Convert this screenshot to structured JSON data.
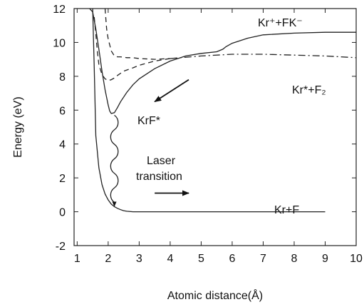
{
  "chart_data": {
    "type": "line",
    "title": "",
    "xlabel": "Atomic distance(Å)",
    "ylabel": "Energy (eV)",
    "xlim": [
      0.9,
      10
    ],
    "ylim": [
      -2,
      12
    ],
    "x_ticks": [
      1,
      2,
      3,
      4,
      5,
      6,
      7,
      8,
      9,
      10
    ],
    "y_ticks": [
      -2,
      0,
      2,
      4,
      6,
      8,
      10,
      12
    ],
    "grid": false,
    "series": [
      {
        "style": "solid",
        "x": [
          1.5,
          1.55,
          1.6,
          1.7,
          1.8,
          1.9,
          2.0,
          2.1,
          2.2,
          2.3,
          2.4,
          2.5,
          2.6,
          2.8,
          3.0,
          4.0,
          5.0,
          6.0,
          7.0,
          8.0,
          9.0
        ],
        "y": [
          12,
          8.5,
          4.5,
          2.6,
          1.6,
          1.05,
          0.7,
          0.45,
          0.3,
          0.2,
          0.12,
          0.06,
          0.03,
          0.0,
          0.0,
          0.0,
          0.0,
          0.0,
          0.0,
          0.0,
          0.0
        ]
      },
      {
        "style": "solid",
        "x": [
          1.4,
          1.5,
          1.6,
          1.7,
          1.8,
          1.9,
          2.0,
          2.05,
          2.1,
          2.2,
          2.3,
          2.4,
          2.6,
          2.8,
          3.0,
          3.5,
          4.0,
          4.5,
          5.0,
          5.5,
          5.7,
          5.8,
          6.0,
          6.5,
          7.0,
          8.0,
          9.0,
          10.0
        ],
        "y": [
          12,
          11.8,
          10.8,
          9.6,
          8.3,
          7.2,
          6.3,
          5.95,
          5.8,
          5.85,
          6.15,
          6.5,
          7.05,
          7.5,
          7.85,
          8.45,
          8.9,
          9.2,
          9.35,
          9.45,
          9.6,
          9.75,
          9.95,
          10.25,
          10.45,
          10.55,
          10.6,
          10.6
        ]
      },
      {
        "style": "dashed",
        "x": [
          1.9,
          1.92,
          1.95,
          2.0,
          2.1,
          2.2,
          2.3,
          2.4,
          2.6,
          2.8,
          3.0,
          3.5,
          4.0
        ],
        "y": [
          12,
          11.5,
          10.8,
          10.2,
          9.5,
          9.2,
          9.15,
          9.15,
          9.1,
          9.1,
          9.05,
          9.0,
          9.05
        ]
      },
      {
        "style": "dashed",
        "x": [
          1.55,
          1.6,
          1.65,
          1.7,
          1.8,
          1.9,
          2.0,
          2.1,
          2.2,
          2.3,
          2.5,
          2.8,
          3.0,
          3.5,
          4.0
        ],
        "y": [
          11.5,
          10.5,
          9.5,
          8.7,
          8.1,
          7.85,
          7.75,
          7.8,
          7.9,
          8.05,
          8.3,
          8.5,
          8.65,
          8.9,
          9.05
        ]
      },
      {
        "style": "dashdot",
        "x": [
          4.0,
          5.0,
          6.0,
          7.0,
          8.0,
          9.0,
          10.0
        ],
        "y": [
          9.05,
          9.2,
          9.3,
          9.3,
          9.25,
          9.2,
          9.1
        ]
      }
    ],
    "annotations": {
      "kr_plus_fk_minus": "Kr⁺+FK⁻",
      "kr_star_f2": "Kr*+F₂",
      "krf_star": "KrF*",
      "laser_line1": "Laser",
      "laser_line2": "transition",
      "kr_f": "Kr+F"
    }
  }
}
